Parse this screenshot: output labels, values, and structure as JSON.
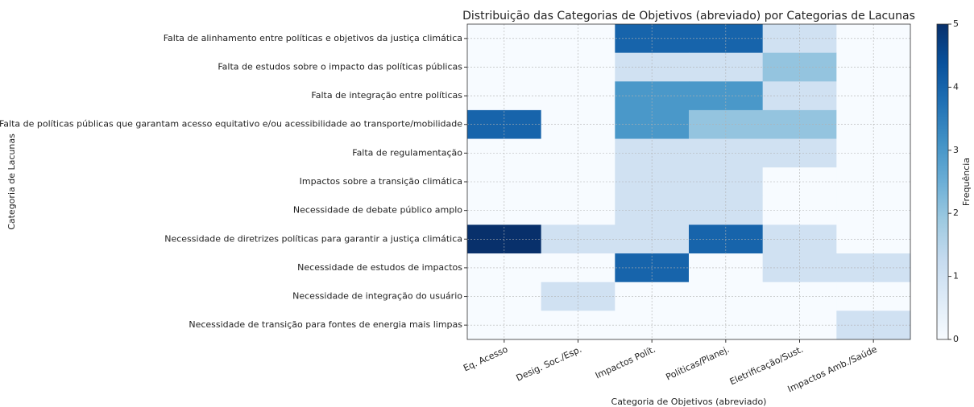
{
  "chart_data": {
    "type": "heatmap",
    "title": "Distribuição das Categorias de Objetivos (abreviado) por Categorias de Lacunas",
    "x_label": "Categoria de Objetivos (abreviado)",
    "y_label": "Categoria de Lacunas",
    "colorbar_label": "Frequência",
    "colormap": "Blues",
    "columns": [
      "Eq. Acesso",
      "Desig. Soc./Esp.",
      "Impactos Polít.",
      "Políticas/Planej.",
      "Eletrificação/Sust.",
      "Impactos Amb./Saúde"
    ],
    "rows": [
      "Falta de alinhamento entre políticas e objetivos da justiça climática",
      "Falta de estudos sobre o impacto das políticas públicas",
      "Falta de integração entre políticas",
      "Falta de políticas públicas que garantam acesso equitativo e/ou acessibilidade ao transporte/mobilidade",
      "Falta de regulamentação",
      "Impactos sobre a transição climática",
      "Necessidade de debate público amplo",
      "Necessidade de diretrizes políticas para garantir a justiça climática",
      "Necessidade de estudos de impactos",
      "Necessidade de integração do usuário",
      "Necessidade de transição para fontes de energia mais limpas"
    ],
    "values": [
      [
        0,
        0,
        4,
        4,
        1,
        0
      ],
      [
        0,
        0,
        1,
        1,
        2,
        0
      ],
      [
        0,
        0,
        3,
        3,
        1,
        0
      ],
      [
        4,
        0,
        3,
        2,
        2,
        0
      ],
      [
        0,
        0,
        1,
        1,
        1,
        0
      ],
      [
        0,
        0,
        1,
        1,
        0,
        0
      ],
      [
        0,
        0,
        1,
        1,
        0,
        0
      ],
      [
        5,
        1,
        1,
        4,
        1,
        0
      ],
      [
        0,
        0,
        4,
        0,
        1,
        1
      ],
      [
        0,
        1,
        0,
        0,
        0,
        0
      ],
      [
        0,
        0,
        0,
        0,
        0,
        1
      ]
    ],
    "clim": [
      0,
      5
    ],
    "cticks": [
      0,
      1,
      2,
      3,
      4,
      5
    ],
    "grid": true
  }
}
